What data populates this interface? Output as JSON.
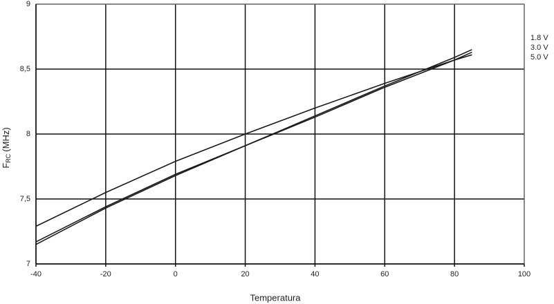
{
  "chart_data": {
    "type": "line",
    "x_label": "Temperatura",
    "y_label": "F",
    "y_label_sub": "RC",
    "y_label_unit": "(MHz)",
    "x": [
      -40,
      -20,
      0,
      20,
      40,
      60,
      80,
      85
    ],
    "series": [
      {
        "name": "1.8 V",
        "color": "#1a1a1a",
        "values": [
          7.29,
          7.55,
          7.79,
          8.0,
          8.2,
          8.39,
          8.57,
          8.61
        ]
      },
      {
        "name": "3.0 V",
        "color": "#1a1a1a",
        "values": [
          7.17,
          7.44,
          7.69,
          7.91,
          8.14,
          8.37,
          8.59,
          8.65
        ]
      },
      {
        "name": "5.0 V",
        "color": "#1a1a1a",
        "values": [
          7.15,
          7.43,
          7.68,
          7.91,
          8.13,
          8.36,
          8.57,
          8.63
        ]
      }
    ],
    "xlim": [
      -40,
      100
    ],
    "xticks": [
      -40,
      -20,
      0,
      20,
      40,
      60,
      80,
      100
    ],
    "ylim": [
      7,
      9
    ],
    "yticks": [
      7,
      {
        "value": 7.5,
        "label": "7,5"
      },
      8,
      {
        "value": 8.5,
        "label": "8,5"
      },
      9
    ],
    "grid": true
  }
}
